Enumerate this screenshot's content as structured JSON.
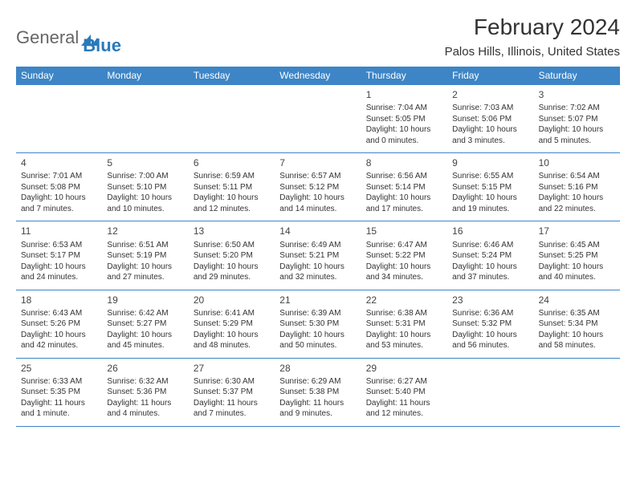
{
  "brand": {
    "part1": "General",
    "part2": "Blue"
  },
  "title": "February 2024",
  "location": "Palos Hills, Illinois, United States",
  "colors": {
    "header_bg": "#3d85c6",
    "header_text": "#ffffff",
    "rule": "#3d85c6",
    "body_text": "#333333",
    "brand_gray": "#666666",
    "brand_blue": "#2a7ab9",
    "page_bg": "#ffffff"
  },
  "weekdays": [
    "Sunday",
    "Monday",
    "Tuesday",
    "Wednesday",
    "Thursday",
    "Friday",
    "Saturday"
  ],
  "weeks": [
    [
      null,
      null,
      null,
      null,
      {
        "n": "1",
        "sr": "Sunrise: 7:04 AM",
        "ss": "Sunset: 5:05 PM",
        "d1": "Daylight: 10 hours",
        "d2": "and 0 minutes."
      },
      {
        "n": "2",
        "sr": "Sunrise: 7:03 AM",
        "ss": "Sunset: 5:06 PM",
        "d1": "Daylight: 10 hours",
        "d2": "and 3 minutes."
      },
      {
        "n": "3",
        "sr": "Sunrise: 7:02 AM",
        "ss": "Sunset: 5:07 PM",
        "d1": "Daylight: 10 hours",
        "d2": "and 5 minutes."
      }
    ],
    [
      {
        "n": "4",
        "sr": "Sunrise: 7:01 AM",
        "ss": "Sunset: 5:08 PM",
        "d1": "Daylight: 10 hours",
        "d2": "and 7 minutes."
      },
      {
        "n": "5",
        "sr": "Sunrise: 7:00 AM",
        "ss": "Sunset: 5:10 PM",
        "d1": "Daylight: 10 hours",
        "d2": "and 10 minutes."
      },
      {
        "n": "6",
        "sr": "Sunrise: 6:59 AM",
        "ss": "Sunset: 5:11 PM",
        "d1": "Daylight: 10 hours",
        "d2": "and 12 minutes."
      },
      {
        "n": "7",
        "sr": "Sunrise: 6:57 AM",
        "ss": "Sunset: 5:12 PM",
        "d1": "Daylight: 10 hours",
        "d2": "and 14 minutes."
      },
      {
        "n": "8",
        "sr": "Sunrise: 6:56 AM",
        "ss": "Sunset: 5:14 PM",
        "d1": "Daylight: 10 hours",
        "d2": "and 17 minutes."
      },
      {
        "n": "9",
        "sr": "Sunrise: 6:55 AM",
        "ss": "Sunset: 5:15 PM",
        "d1": "Daylight: 10 hours",
        "d2": "and 19 minutes."
      },
      {
        "n": "10",
        "sr": "Sunrise: 6:54 AM",
        "ss": "Sunset: 5:16 PM",
        "d1": "Daylight: 10 hours",
        "d2": "and 22 minutes."
      }
    ],
    [
      {
        "n": "11",
        "sr": "Sunrise: 6:53 AM",
        "ss": "Sunset: 5:17 PM",
        "d1": "Daylight: 10 hours",
        "d2": "and 24 minutes."
      },
      {
        "n": "12",
        "sr": "Sunrise: 6:51 AM",
        "ss": "Sunset: 5:19 PM",
        "d1": "Daylight: 10 hours",
        "d2": "and 27 minutes."
      },
      {
        "n": "13",
        "sr": "Sunrise: 6:50 AM",
        "ss": "Sunset: 5:20 PM",
        "d1": "Daylight: 10 hours",
        "d2": "and 29 minutes."
      },
      {
        "n": "14",
        "sr": "Sunrise: 6:49 AM",
        "ss": "Sunset: 5:21 PM",
        "d1": "Daylight: 10 hours",
        "d2": "and 32 minutes."
      },
      {
        "n": "15",
        "sr": "Sunrise: 6:47 AM",
        "ss": "Sunset: 5:22 PM",
        "d1": "Daylight: 10 hours",
        "d2": "and 34 minutes."
      },
      {
        "n": "16",
        "sr": "Sunrise: 6:46 AM",
        "ss": "Sunset: 5:24 PM",
        "d1": "Daylight: 10 hours",
        "d2": "and 37 minutes."
      },
      {
        "n": "17",
        "sr": "Sunrise: 6:45 AM",
        "ss": "Sunset: 5:25 PM",
        "d1": "Daylight: 10 hours",
        "d2": "and 40 minutes."
      }
    ],
    [
      {
        "n": "18",
        "sr": "Sunrise: 6:43 AM",
        "ss": "Sunset: 5:26 PM",
        "d1": "Daylight: 10 hours",
        "d2": "and 42 minutes."
      },
      {
        "n": "19",
        "sr": "Sunrise: 6:42 AM",
        "ss": "Sunset: 5:27 PM",
        "d1": "Daylight: 10 hours",
        "d2": "and 45 minutes."
      },
      {
        "n": "20",
        "sr": "Sunrise: 6:41 AM",
        "ss": "Sunset: 5:29 PM",
        "d1": "Daylight: 10 hours",
        "d2": "and 48 minutes."
      },
      {
        "n": "21",
        "sr": "Sunrise: 6:39 AM",
        "ss": "Sunset: 5:30 PM",
        "d1": "Daylight: 10 hours",
        "d2": "and 50 minutes."
      },
      {
        "n": "22",
        "sr": "Sunrise: 6:38 AM",
        "ss": "Sunset: 5:31 PM",
        "d1": "Daylight: 10 hours",
        "d2": "and 53 minutes."
      },
      {
        "n": "23",
        "sr": "Sunrise: 6:36 AM",
        "ss": "Sunset: 5:32 PM",
        "d1": "Daylight: 10 hours",
        "d2": "and 56 minutes."
      },
      {
        "n": "24",
        "sr": "Sunrise: 6:35 AM",
        "ss": "Sunset: 5:34 PM",
        "d1": "Daylight: 10 hours",
        "d2": "and 58 minutes."
      }
    ],
    [
      {
        "n": "25",
        "sr": "Sunrise: 6:33 AM",
        "ss": "Sunset: 5:35 PM",
        "d1": "Daylight: 11 hours",
        "d2": "and 1 minute."
      },
      {
        "n": "26",
        "sr": "Sunrise: 6:32 AM",
        "ss": "Sunset: 5:36 PM",
        "d1": "Daylight: 11 hours",
        "d2": "and 4 minutes."
      },
      {
        "n": "27",
        "sr": "Sunrise: 6:30 AM",
        "ss": "Sunset: 5:37 PM",
        "d1": "Daylight: 11 hours",
        "d2": "and 7 minutes."
      },
      {
        "n": "28",
        "sr": "Sunrise: 6:29 AM",
        "ss": "Sunset: 5:38 PM",
        "d1": "Daylight: 11 hours",
        "d2": "and 9 minutes."
      },
      {
        "n": "29",
        "sr": "Sunrise: 6:27 AM",
        "ss": "Sunset: 5:40 PM",
        "d1": "Daylight: 11 hours",
        "d2": "and 12 minutes."
      },
      null,
      null
    ]
  ]
}
